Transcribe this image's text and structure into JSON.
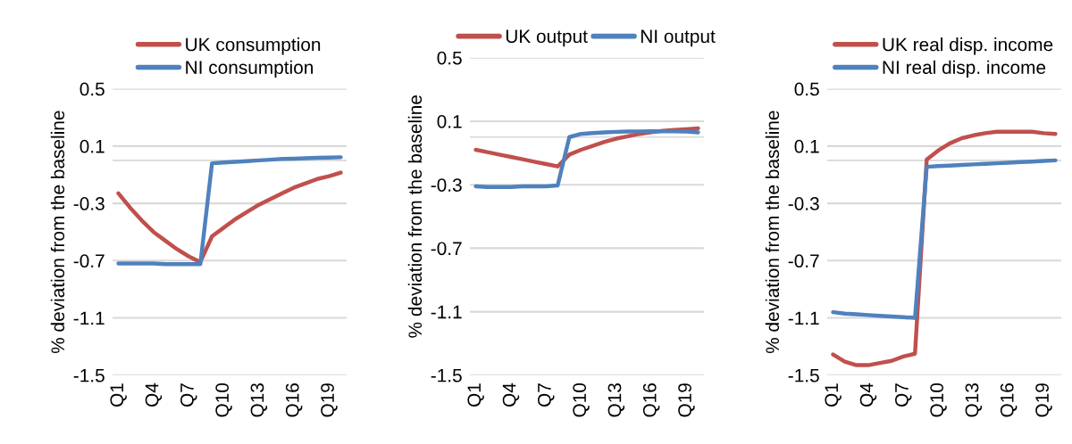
{
  "chart_data": [
    {
      "type": "line",
      "ylabel": "% deviation from the baseline",
      "categories": [
        "Q1",
        null,
        null,
        "Q4",
        null,
        null,
        "Q7",
        null,
        null,
        "Q10",
        null,
        null,
        "Q13",
        null,
        null,
        "Q16",
        null,
        null,
        "Q19",
        null
      ],
      "series": [
        {
          "name": "UK consumption",
          "color": "#c0504d",
          "values": [
            -0.23,
            -0.33,
            -0.42,
            -0.5,
            -0.56,
            -0.62,
            -0.67,
            -0.71,
            -0.53,
            -0.47,
            -0.41,
            -0.36,
            -0.31,
            -0.27,
            -0.23,
            -0.19,
            -0.16,
            -0.13,
            -0.11,
            -0.085
          ]
        },
        {
          "name": "NI consumption",
          "color": "#4f81bd",
          "values": [
            -0.72,
            -0.72,
            -0.72,
            -0.72,
            -0.725,
            -0.725,
            -0.725,
            -0.725,
            -0.02,
            -0.015,
            -0.01,
            -0.005,
            0.0,
            0.005,
            0.01,
            0.012,
            0.015,
            0.018,
            0.02,
            0.022
          ]
        }
      ],
      "ylim": [
        -1.5,
        0.5
      ],
      "yticks": [
        -1.5,
        -1.1,
        -0.7,
        -0.3,
        0.1,
        0.5
      ],
      "grid": "y",
      "legend": "top",
      "ref_lines": [
        {
          "axis": "y",
          "value": 0,
          "color": "#d9d9d9"
        }
      ]
    },
    {
      "type": "line",
      "ylabel": "% deviation from the baseline",
      "categories": [
        "Q1",
        null,
        null,
        "Q4",
        null,
        null,
        "Q7",
        null,
        null,
        "Q10",
        null,
        null,
        "Q13",
        null,
        null,
        "Q16",
        null,
        null,
        "Q19",
        null
      ],
      "series": [
        {
          "name": "UK output",
          "color": "#c0504d",
          "values": [
            -0.08,
            -0.095,
            -0.11,
            -0.125,
            -0.14,
            -0.155,
            -0.17,
            -0.185,
            -0.11,
            -0.08,
            -0.055,
            -0.03,
            -0.01,
            0.005,
            0.02,
            0.03,
            0.04,
            0.045,
            0.05,
            0.055
          ]
        },
        {
          "name": "NI output",
          "color": "#4f81bd",
          "values": [
            -0.31,
            -0.315,
            -0.315,
            -0.315,
            -0.31,
            -0.31,
            -0.31,
            -0.305,
            0.0,
            0.02,
            0.025,
            0.03,
            0.033,
            0.035,
            0.036,
            0.037,
            0.037,
            0.036,
            0.035,
            0.03
          ]
        }
      ],
      "ylim": [
        -1.5,
        0.5
      ],
      "yticks": [
        -1.5,
        -1.1,
        -0.7,
        -0.3,
        0.1,
        0.5
      ],
      "grid": "y",
      "legend": "top",
      "ref_lines": [
        {
          "axis": "y",
          "value": 0,
          "color": "#d9d9d9"
        }
      ]
    },
    {
      "type": "line",
      "ylabel": "% deviation from the baseline",
      "categories": [
        "Q1",
        null,
        null,
        "Q4",
        null,
        null,
        "Q7",
        null,
        null,
        "Q10",
        null,
        null,
        "Q13",
        null,
        null,
        "Q16",
        null,
        null,
        "Q19",
        null
      ],
      "series": [
        {
          "name": "UK real disp. income",
          "color": "#c0504d",
          "values": [
            -1.355,
            -1.405,
            -1.43,
            -1.43,
            -1.415,
            -1.4,
            -1.37,
            -1.35,
            0.005,
            0.07,
            0.12,
            0.155,
            0.175,
            0.19,
            0.2,
            0.2,
            0.2,
            0.2,
            0.19,
            0.185
          ]
        },
        {
          "name": "NI real disp. income",
          "color": "#4f81bd",
          "values": [
            -1.06,
            -1.07,
            -1.075,
            -1.08,
            -1.085,
            -1.09,
            -1.095,
            -1.1,
            -0.045,
            -0.04,
            -0.036,
            -0.032,
            -0.028,
            -0.024,
            -0.02,
            -0.016,
            -0.012,
            -0.008,
            -0.004,
            0.0
          ]
        }
      ],
      "ylim": [
        -1.5,
        0.5
      ],
      "yticks": [
        -1.5,
        -1.1,
        -0.7,
        -0.3,
        0.1,
        0.5
      ],
      "grid": "y",
      "legend": "top",
      "ref_lines": [
        {
          "axis": "y",
          "value": 0,
          "color": "#d9d9d9"
        }
      ]
    }
  ]
}
